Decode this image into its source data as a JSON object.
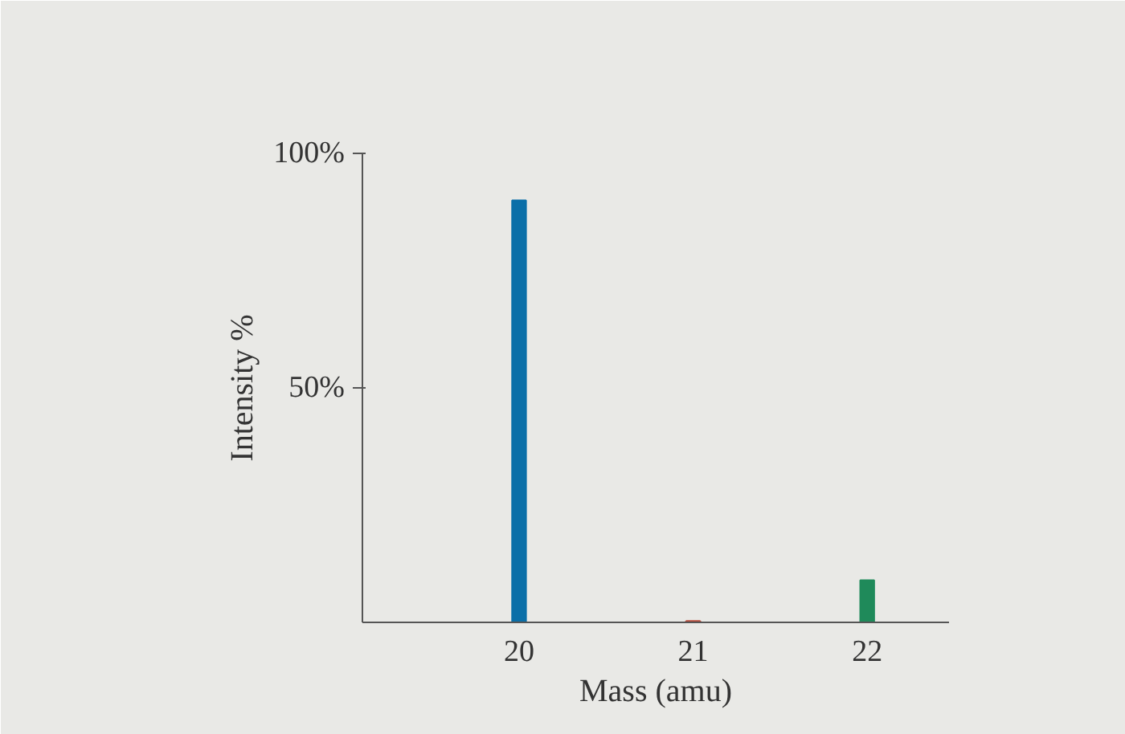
{
  "chart_data": {
    "type": "bar",
    "xlabel": "Mass (amu)",
    "ylabel": "Intensity %",
    "x": [
      20,
      21,
      22
    ],
    "values": [
      90,
      0.3,
      9
    ],
    "colors": [
      "#0b6fa8",
      "#b84a3a",
      "#1f8a5a"
    ],
    "xlim": [
      19.1,
      22.47
    ],
    "xticks": [
      20,
      21,
      22
    ],
    "ylim": [
      0,
      100
    ],
    "yticks": [
      {
        "value": 50,
        "label": "50%"
      },
      {
        "value": 100,
        "label": "100%"
      }
    ]
  }
}
